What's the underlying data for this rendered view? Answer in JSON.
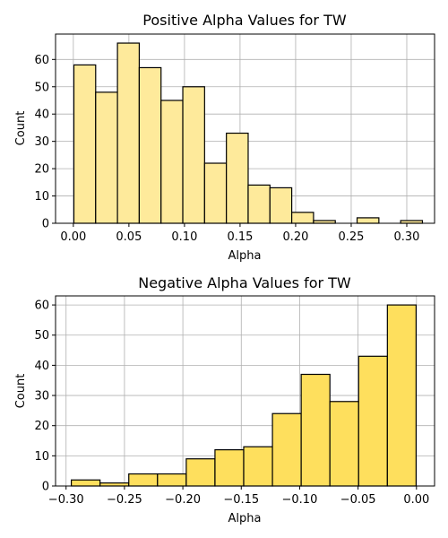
{
  "chart_data": [
    {
      "type": "histogram",
      "title": "Positive Alpha Values for TW",
      "xlabel": "Alpha",
      "ylabel": "Count",
      "xlim": [
        -0.016,
        0.325
      ],
      "ylim": [
        0,
        69.3
      ],
      "xticks": [
        0.0,
        0.05,
        0.1,
        0.15,
        0.2,
        0.25,
        0.3
      ],
      "xtick_labels": [
        "0.00",
        "0.05",
        "0.10",
        "0.15",
        "0.20",
        "0.25",
        "0.30"
      ],
      "yticks": [
        0,
        10,
        20,
        30,
        40,
        50,
        60
      ],
      "bin_width": 0.0196,
      "bins": [
        {
          "x0": 0.0005,
          "count": 58
        },
        {
          "x0": 0.0201,
          "count": 48
        },
        {
          "x0": 0.0397,
          "count": 66
        },
        {
          "x0": 0.0593,
          "count": 57
        },
        {
          "x0": 0.0789,
          "count": 45
        },
        {
          "x0": 0.0985,
          "count": 50
        },
        {
          "x0": 0.1181,
          "count": 22
        },
        {
          "x0": 0.1377,
          "count": 33
        },
        {
          "x0": 0.1573,
          "count": 14
        },
        {
          "x0": 0.1769,
          "count": 13
        },
        {
          "x0": 0.1965,
          "count": 4
        },
        {
          "x0": 0.2161,
          "count": 1
        },
        {
          "x0": 0.2357,
          "count": 0
        },
        {
          "x0": 0.2553,
          "count": 2
        },
        {
          "x0": 0.2749,
          "count": 0
        },
        {
          "x0": 0.2945,
          "count": 1
        }
      ],
      "fill_color": "#feea9b",
      "edge_color": "#000000",
      "grid": true
    },
    {
      "type": "histogram",
      "title": "Negative Alpha Values for TW",
      "xlabel": "Alpha",
      "ylabel": "Count",
      "xlim": [
        -0.309,
        0.0155
      ],
      "ylim": [
        0,
        63
      ],
      "xticks": [
        -0.3,
        -0.25,
        -0.2,
        -0.15,
        -0.1,
        -0.05,
        0.0
      ],
      "xtick_labels": [
        "−0.30",
        "−0.25",
        "−0.20",
        "−0.15",
        "−0.10",
        "−0.05",
        "0.00"
      ],
      "yticks": [
        0,
        10,
        20,
        30,
        40,
        50,
        60
      ],
      "bin_width": 0.0246,
      "bins": [
        {
          "x0": -0.2955,
          "count": 2
        },
        {
          "x0": -0.2709,
          "count": 1
        },
        {
          "x0": -0.2463,
          "count": 4
        },
        {
          "x0": -0.2217,
          "count": 4
        },
        {
          "x0": -0.1971,
          "count": 9
        },
        {
          "x0": -0.1725,
          "count": 12
        },
        {
          "x0": -0.1479,
          "count": 13
        },
        {
          "x0": -0.1233,
          "count": 24
        },
        {
          "x0": -0.0987,
          "count": 37
        },
        {
          "x0": -0.0741,
          "count": 28
        },
        {
          "x0": -0.0495,
          "count": 43
        },
        {
          "x0": -0.0249,
          "count": 60
        }
      ],
      "fill_color": "#fedf5d",
      "edge_color": "#000000",
      "grid": true
    }
  ]
}
